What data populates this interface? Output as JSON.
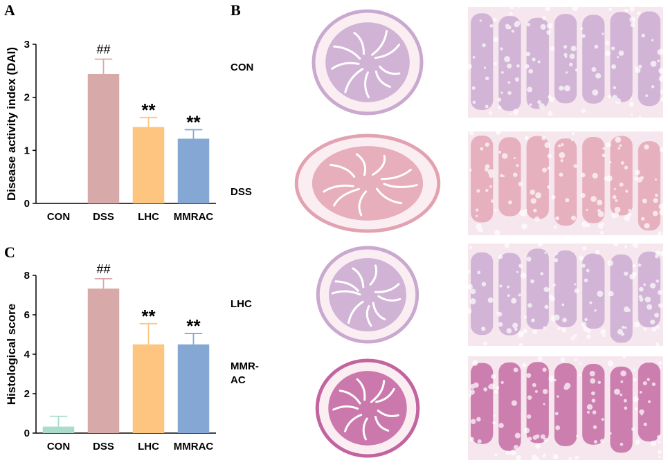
{
  "panels": {
    "a_letter": "A",
    "b_letter": "B",
    "c_letter": "C"
  },
  "chart_data": [
    {
      "type": "bar",
      "panel": "A",
      "ylabel": "Disease activity index (DAI)",
      "xlabel": "",
      "categories": [
        "CON",
        "DSS",
        "LHC",
        "MMRAC"
      ],
      "values": [
        0,
        2.44,
        1.44,
        1.22
      ],
      "errors": [
        0,
        0.28,
        0.18,
        0.17
      ],
      "annotations": [
        "",
        "##",
        "**",
        "**"
      ],
      "ylim": [
        0,
        3
      ],
      "yticks": [
        0,
        1,
        2,
        3
      ],
      "grid": false,
      "colors": [
        "#a9dcc9",
        "#d7aaa9",
        "#fdc57f",
        "#84a7d4"
      ]
    },
    {
      "type": "bar",
      "panel": "C",
      "ylabel": "Histological score",
      "xlabel": "",
      "categories": [
        "CON",
        "DSS",
        "LHC",
        "MMRAC"
      ],
      "values": [
        0.33,
        7.33,
        4.5,
        4.5
      ],
      "errors": [
        0.52,
        0.5,
        1.05,
        0.55
      ],
      "annotations": [
        "",
        "##",
        "**",
        "**"
      ],
      "ylim": [
        0,
        8
      ],
      "yticks": [
        0,
        2,
        4,
        6,
        8
      ],
      "grid": false,
      "colors": [
        "#a9dcc9",
        "#d7aaa9",
        "#fdc57f",
        "#84a7d4"
      ]
    }
  ],
  "histology": {
    "rows": [
      {
        "label": "CON",
        "stain": "pale"
      },
      {
        "label": "DSS",
        "stain": "pink"
      },
      {
        "label": "LHC",
        "stain": "pale"
      },
      {
        "label": "MMR-\nAC",
        "stain": "deep"
      }
    ],
    "colors": {
      "pale": "#c9a9cf",
      "pink": "#e3a2b2",
      "deep": "#c2649f",
      "background": "#f3e8ee"
    }
  }
}
